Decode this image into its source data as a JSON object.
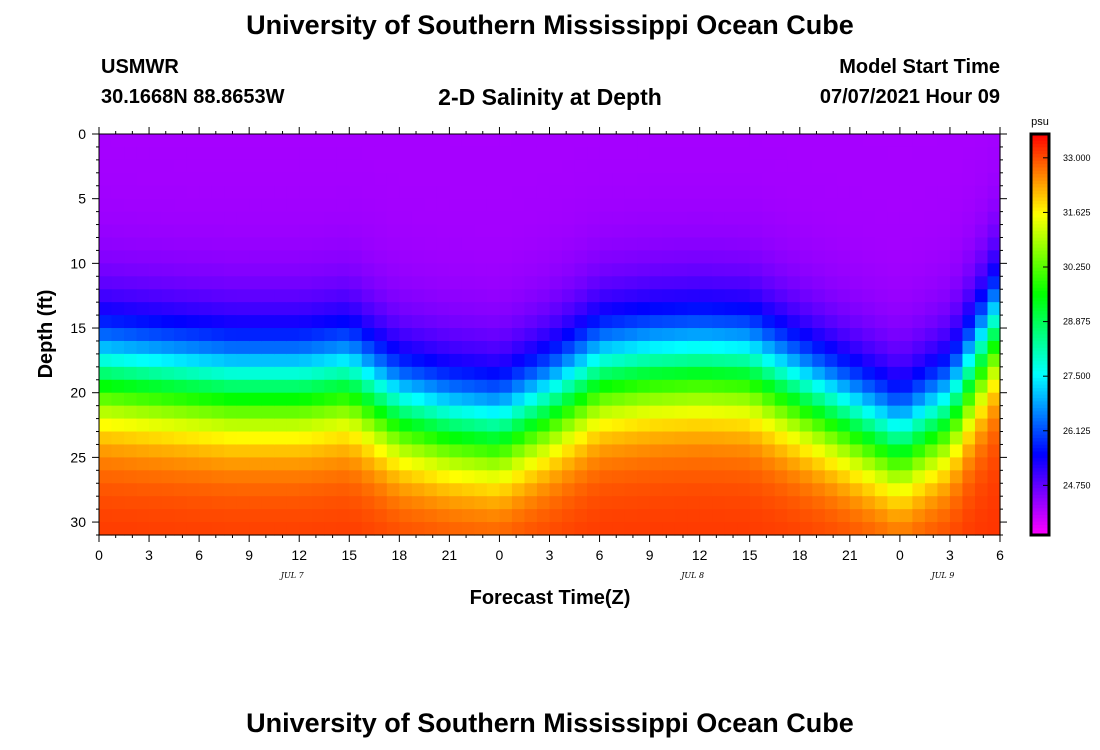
{
  "header": {
    "title": "University of Southern Mississippi Ocean Cube",
    "station": "USMWR",
    "coords": "30.1668N  88.8653W",
    "plot_title": "2-D Salinity at Depth",
    "model_start_label": "Model Start Time",
    "model_start_value": "07/07/2021 Hour 09"
  },
  "footer": {
    "title": "University of Southern Mississippi Ocean Cube"
  },
  "chart_data": {
    "type": "heatmap",
    "title": "2-D Salinity at Depth",
    "xlabel": "Forecast Time(Z)",
    "ylabel": "Depth (ft)",
    "x_range_hours": [
      0,
      54
    ],
    "y_range_ft": [
      0,
      31
    ],
    "x_ticks": [
      "0",
      "3",
      "6",
      "9",
      "12",
      "15",
      "18",
      "21",
      "0",
      "3",
      "6",
      "9",
      "12",
      "15",
      "18",
      "21",
      "0",
      "3",
      "6"
    ],
    "date_labels": [
      {
        "text": "JUL 7",
        "hour": 12
      },
      {
        "text": "JUL 8",
        "hour": 36
      },
      {
        "text": "JUL 9",
        "hour": 51
      }
    ],
    "y_ticks": [
      0,
      5,
      10,
      15,
      20,
      25,
      30
    ],
    "colorbar": {
      "unit": "psu",
      "min": 23.5,
      "max": 33.6,
      "ticks": [
        "33.000",
        "31.625",
        "30.250",
        "28.875",
        "27.500",
        "26.125",
        "24.750"
      ]
    },
    "isohaline_ridge": {
      "hours": [
        0,
        4,
        8,
        12,
        15,
        18,
        21,
        24,
        27,
        30,
        33,
        36,
        39,
        42,
        45,
        48,
        51,
        54
      ],
      "depth_ft": [
        18.5,
        19,
        19.5,
        19.5,
        19,
        21.5,
        22.5,
        23,
        21,
        18.5,
        18,
        17.8,
        18,
        20,
        22,
        24,
        21.5,
        14.5
      ]
    },
    "surface_salinity_psu": 24.2,
    "bottom_salinity_psu": 33.2
  }
}
